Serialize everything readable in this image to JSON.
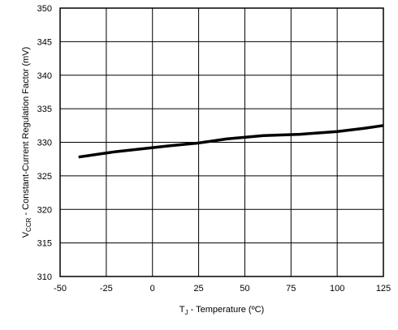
{
  "chart_data": {
    "type": "line",
    "xlabel": {
      "main": "T",
      "subscript": "J",
      "rest": " - Temperature  (ºC)"
    },
    "ylabel": {
      "main": "V",
      "subscript": "CCR",
      "rest": " - Constant-Current Regulation Factor  (mV)"
    },
    "xlim": [
      -50,
      125
    ],
    "ylim": [
      310,
      350
    ],
    "xticks": [
      -50,
      -25,
      0,
      25,
      50,
      75,
      100,
      125
    ],
    "yticks": [
      310,
      315,
      320,
      325,
      330,
      335,
      340,
      345,
      350
    ],
    "grid": true,
    "series": [
      {
        "x": [
          -40,
          -30,
          -20,
          -10,
          0,
          10,
          25,
          40,
          60,
          80,
          100,
          115,
          125
        ],
        "y": [
          327.8,
          328.2,
          328.6,
          328.9,
          329.2,
          329.5,
          329.9,
          330.5,
          331.0,
          331.2,
          331.6,
          332.1,
          332.5
        ],
        "color": "#000000"
      }
    ]
  }
}
